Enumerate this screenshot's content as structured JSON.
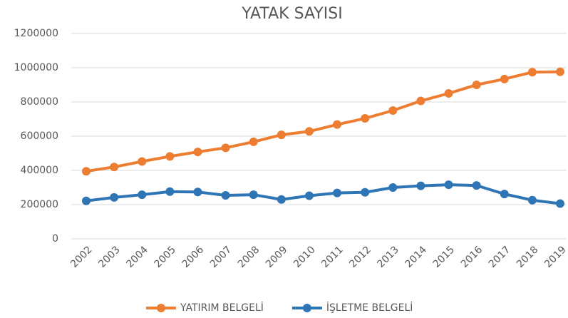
{
  "chart_data": {
    "type": "line",
    "title": "YATAK SAYISI",
    "categories": [
      "2002",
      "2003",
      "2004",
      "2005",
      "2006",
      "2007",
      "2008",
      "2009",
      "2010",
      "2011",
      "2012",
      "2013",
      "2014",
      "2015",
      "2016",
      "2017",
      "2018",
      "2019"
    ],
    "series": [
      {
        "name": "YATIRIM BELGELİ",
        "color": "#ed7d31",
        "values": [
          395000,
          420000,
          452000,
          482000,
          508000,
          532000,
          567000,
          608000,
          628000,
          668000,
          704000,
          750000,
          806000,
          850000,
          900000,
          934000,
          974000,
          976000
        ]
      },
      {
        "name": "İŞLETME BELGELİ",
        "color": "#2e75b6",
        "values": [
          222000,
          242000,
          258000,
          276000,
          274000,
          254000,
          258000,
          230000,
          252000,
          268000,
          272000,
          300000,
          310000,
          316000,
          312000,
          262000,
          226000,
          206000
        ]
      }
    ],
    "ylim": [
      0,
      1200000
    ],
    "yticks": [
      0,
      200000,
      400000,
      600000,
      800000,
      1000000,
      1200000
    ],
    "grid": true,
    "legend": "bottom"
  }
}
